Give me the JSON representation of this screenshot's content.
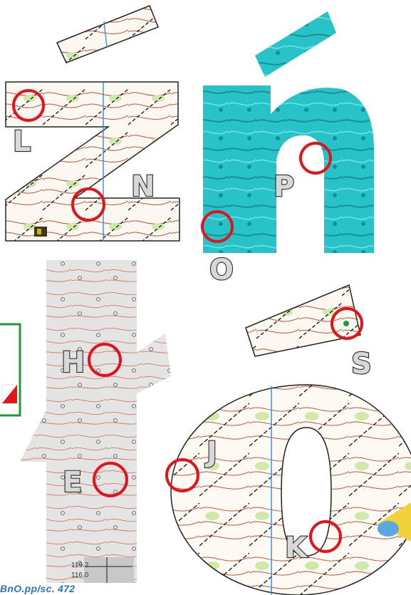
{
  "labels": {
    "L": "L",
    "N": "N",
    "P": "P",
    "O": "O",
    "H": "H",
    "S": "S",
    "J": "J",
    "E": "E",
    "K": "K"
  },
  "spot_heights": {
    "a": "119.2",
    "b": "116.0"
  },
  "footer_text": "BnO.pp/sc. 472",
  "colors": {
    "control_circle": "#e0141a",
    "contour": "#c0543a",
    "lidar": "#2ecfd4",
    "vegetation": "#cfe9a8",
    "frame": "#1e9a3a"
  }
}
